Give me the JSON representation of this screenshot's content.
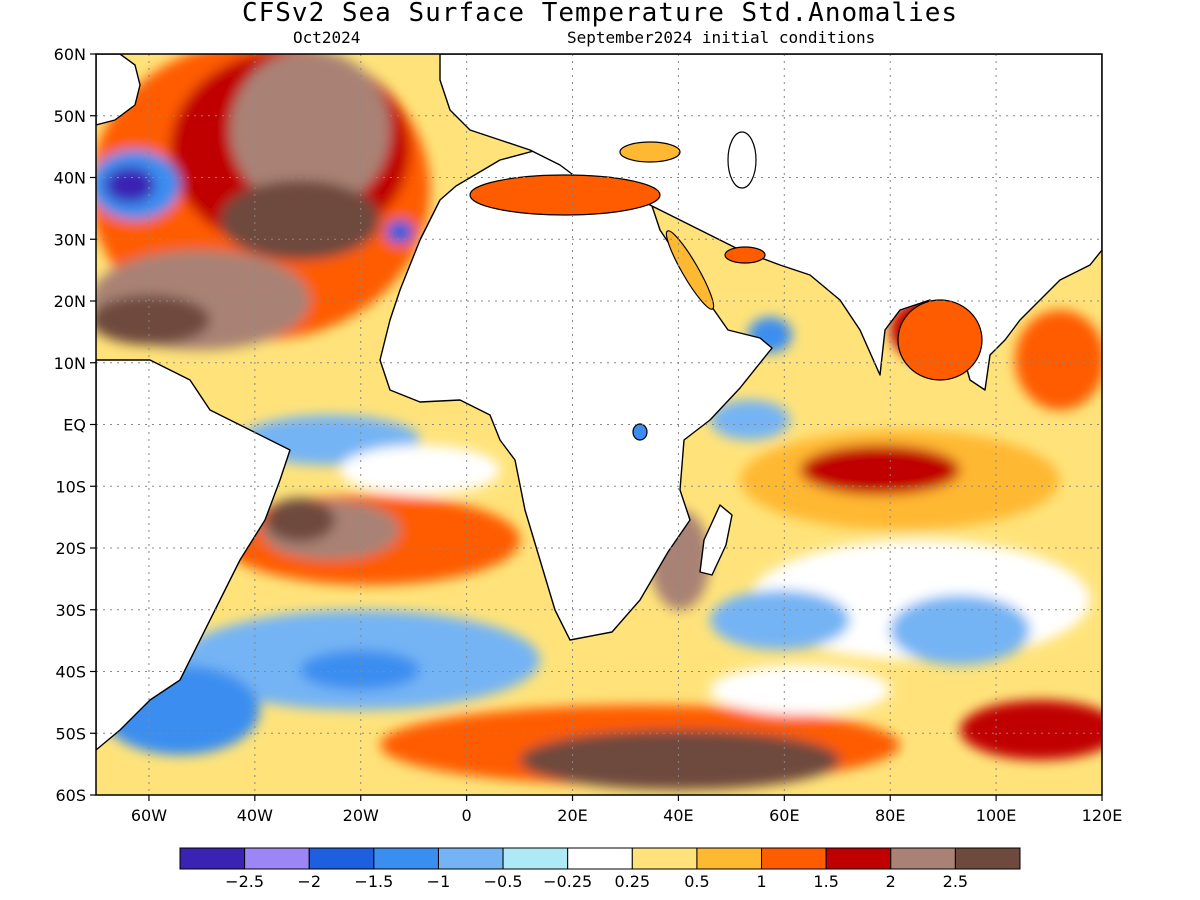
{
  "title": "CFSv2 Sea Surface Temperature Std.Anomalies",
  "valid_month": "Oct2024",
  "initial_conditions": "September2024 initial conditions",
  "map": {
    "lon_range": [
      -70,
      120
    ],
    "lat_range": [
      -60,
      60
    ],
    "lat_ticks": [
      {
        "value": 60,
        "label": "60N"
      },
      {
        "value": 50,
        "label": "50N"
      },
      {
        "value": 40,
        "label": "40N"
      },
      {
        "value": 30,
        "label": "30N"
      },
      {
        "value": 20,
        "label": "20N"
      },
      {
        "value": 10,
        "label": "10N"
      },
      {
        "value": 0,
        "label": "EQ"
      },
      {
        "value": -10,
        "label": "10S"
      },
      {
        "value": -20,
        "label": "20S"
      },
      {
        "value": -30,
        "label": "30S"
      },
      {
        "value": -40,
        "label": "40S"
      },
      {
        "value": -50,
        "label": "50S"
      },
      {
        "value": -60,
        "label": "60S"
      }
    ],
    "lon_ticks": [
      {
        "value": -60,
        "label": "60W"
      },
      {
        "value": -40,
        "label": "40W"
      },
      {
        "value": -20,
        "label": "20W"
      },
      {
        "value": 0,
        "label": "0"
      },
      {
        "value": 20,
        "label": "20E"
      },
      {
        "value": 40,
        "label": "40E"
      },
      {
        "value": 60,
        "label": "60E"
      },
      {
        "value": 80,
        "label": "80E"
      },
      {
        "value": 100,
        "label": "100E"
      },
      {
        "value": 120,
        "label": "120E"
      }
    ],
    "grid": true
  },
  "colorbar": {
    "colors": [
      "#3a22b4",
      "#9c86f5",
      "#1e5fe0",
      "#3a8ef0",
      "#74b4f4",
      "#aeeaf6",
      "#ffffff",
      "#ffe37a",
      "#ffb832",
      "#ff5c00",
      "#c00000",
      "#a98275",
      "#6e4a3e"
    ],
    "labels": [
      "−2.5",
      "−2",
      "−1.5",
      "−1",
      "−0.5",
      "−0.25",
      "0.25",
      "0.5",
      "1",
      "1.5",
      "2",
      "2.5"
    ]
  }
}
